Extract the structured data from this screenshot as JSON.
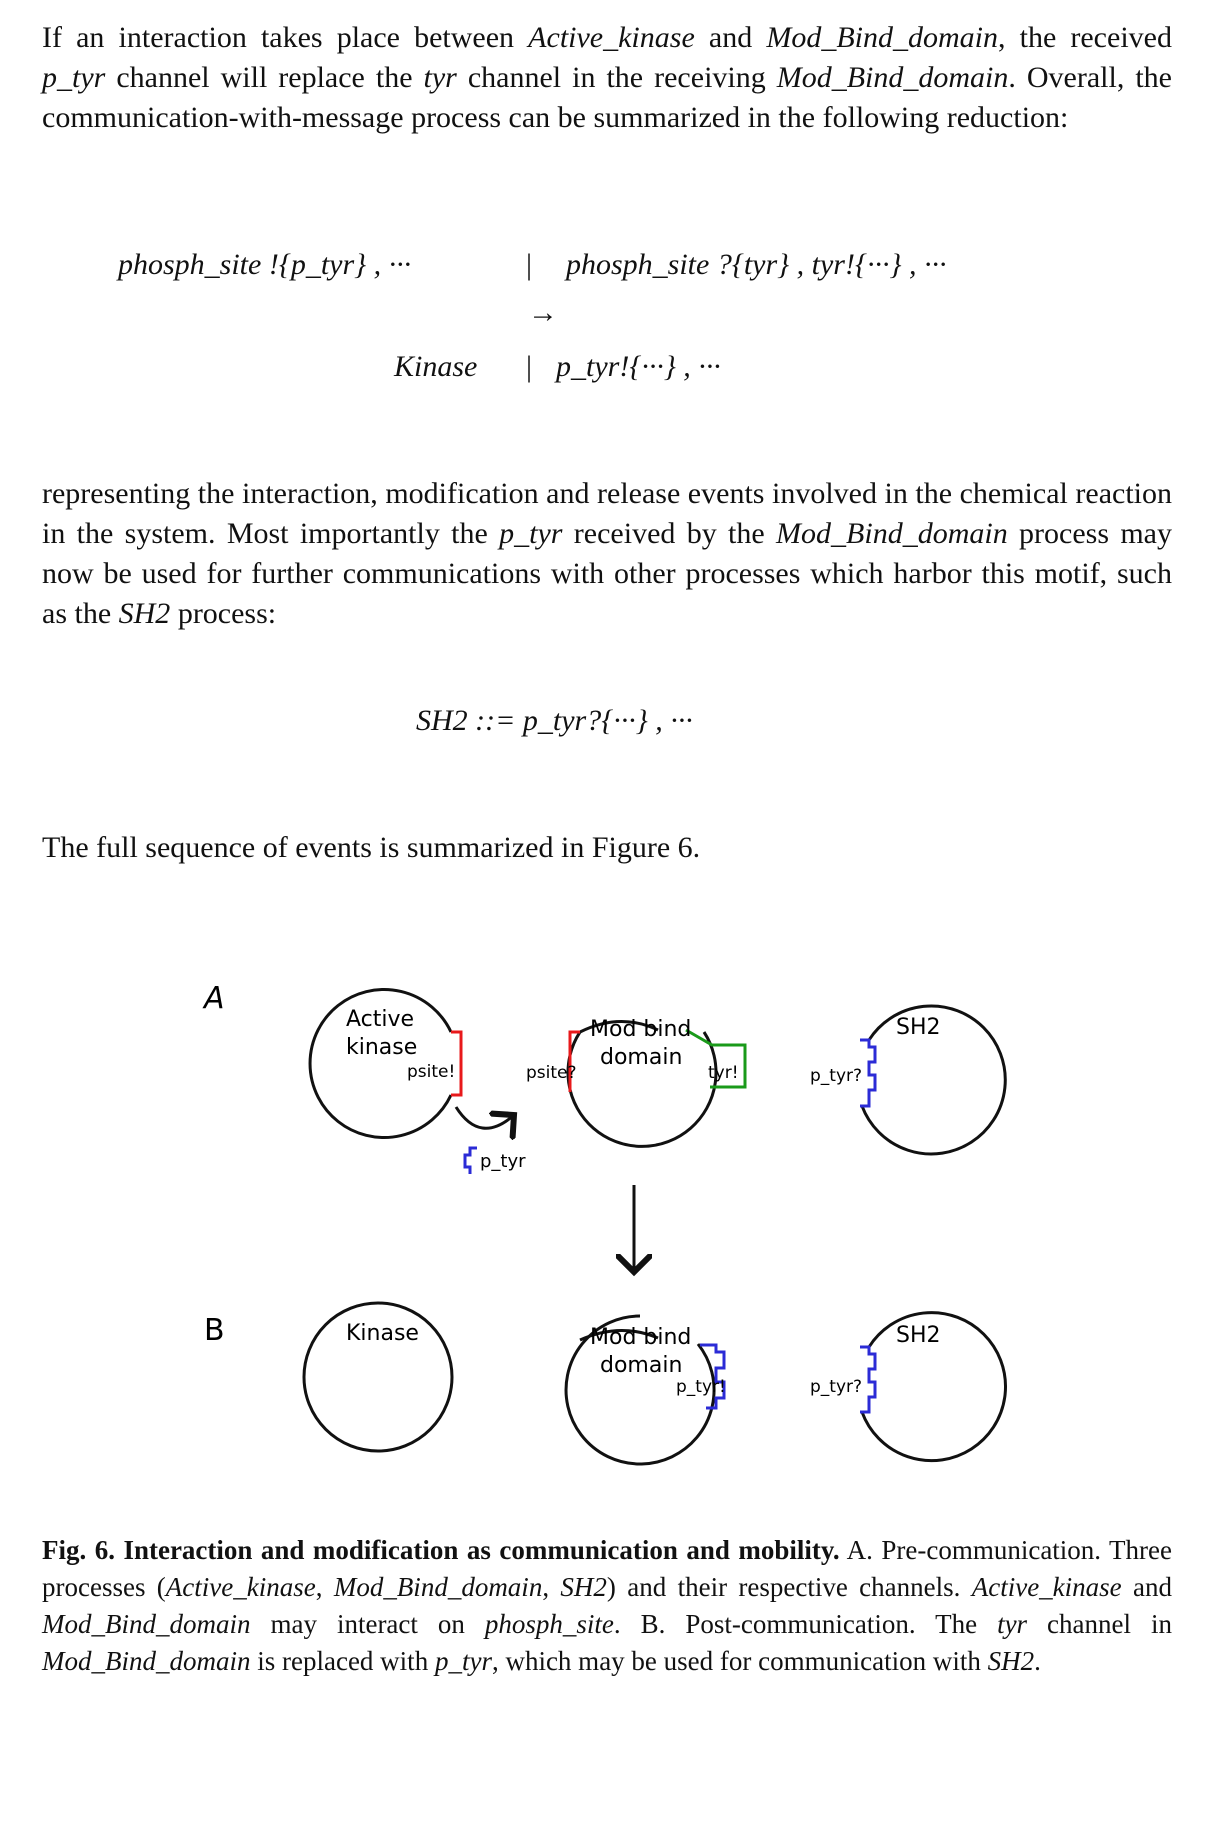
{
  "para1": {
    "t1": "If an interaction takes place between ",
    "t2": "Active_kinase",
    "t3": " and ",
    "t4": "Mod_Bind_domain",
    "t5": ", the received ",
    "t6": "p_tyr",
    "t7": " channel will replace the ",
    "t8": "tyr",
    "t9": " channel in the receiving ",
    "t10": "Mod_Bind_domain",
    "t11": ". Overall, the communication-with-message process can be summarized in the following reduction:"
  },
  "reduction": {
    "line1_left": "phosph_site !{p_tyr} ,  ···",
    "line1_sep": "|",
    "line1_right": "phosph_site ?{tyr} , tyr!{···} ,  ···",
    "arrow": "→",
    "line2_left": "Kinase",
    "line2_sep": "|",
    "line2_right": "p_tyr!{···} ,  ···"
  },
  "para2": {
    "t1": "representing the interaction, modification and release events involved in the chemical reaction in the system. Most importantly the ",
    "t2": "p_tyr",
    "t3": " received by the ",
    "t4": "Mod_Bind_domain",
    "t5": " process may now be used for further communications with other processes which harbor this motif, such as the ",
    "t6": "SH2",
    "t7": " process:"
  },
  "sh2_def": "SH2 ::= p_tyr?{···} ,  ···",
  "para3": "The full sequence of events is summarized in Figure 6.",
  "figure": {
    "panel_a": "A",
    "panel_b": "B",
    "active_kinase_l1": "Active",
    "active_kinase_l2": "kinase",
    "psite_out": "psite!",
    "psite_in": "psite?",
    "mod_bind_l1": "Mod bind",
    "mod_bind_l2": "domain",
    "tyr_out": "tyr!",
    "ptyr_in": "p_tyr?",
    "sh2": "SH2",
    "ptyr_msg": "p_tyr",
    "kinase": "Kinase",
    "ptyr_out": "p_tyr!",
    "colors": {
      "red": "#e8191b",
      "green": "#1a9a1a",
      "blue": "#2b2bd6"
    }
  },
  "caption": {
    "bold": "Fig. 6. Interaction and modification as communication and mobility.",
    "t1": " A. Pre-communication. Three processes (",
    "t2": "Active_kinase",
    "t3": ", ",
    "t4": "Mod_Bind_domain",
    "t5": ", ",
    "t6": "SH2",
    "t7": ") and their respective channels. ",
    "t8": "Active_kinase",
    "t9": " and ",
    "t10": "Mod_Bind_domain",
    "t11": " may interact on ",
    "t12": "phosph_site",
    "t13": ". B. Post-communication. The ",
    "t14": "tyr",
    "t15": " channel in ",
    "t16": "Mod_Bind_domain",
    "t17": " is replaced with ",
    "t18": "p_tyr",
    "t19": ", which may be used for communication with ",
    "t20": "SH2",
    "t21": "."
  }
}
